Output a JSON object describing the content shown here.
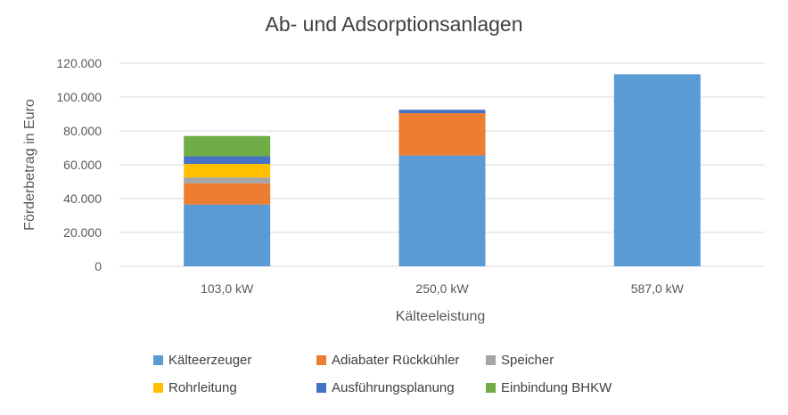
{
  "chart_data": {
    "type": "bar",
    "stacked": true,
    "title": "Ab- und Adsorptionsanlagen",
    "xlabel": "Kälteeleistung",
    "ylabel": "Förderbetrag in Euro",
    "ylim": [
      0,
      120000
    ],
    "yticks": [
      {
        "value": 0,
        "label": "0"
      },
      {
        "value": 20000,
        "label": "20.000"
      },
      {
        "value": 40000,
        "label": "40.000"
      },
      {
        "value": 60000,
        "label": "60.000"
      },
      {
        "value": 80000,
        "label": "80.000"
      },
      {
        "value": 100000,
        "label": "100.000"
      },
      {
        "value": 120000,
        "label": "120.000"
      }
    ],
    "grid": true,
    "legend_position": "bottom",
    "categories": [
      "103,0 kW",
      "250,0 kW",
      "587,0 kW"
    ],
    "series": [
      {
        "name": "Kälteerzeuger",
        "color": "#5B9BD5",
        "values": [
          36500,
          65500,
          113500
        ]
      },
      {
        "name": "Adiabater Rückkühler",
        "color": "#ED7D31",
        "values": [
          12500,
          25000,
          0
        ]
      },
      {
        "name": "Speicher",
        "color": "#A5A5A5",
        "values": [
          3500,
          0,
          0
        ]
      },
      {
        "name": "Rohrleitung",
        "color": "#FFC000",
        "values": [
          8000,
          0,
          0
        ]
      },
      {
        "name": "Ausführungsplanung",
        "color": "#4472C4",
        "values": [
          4500,
          2000,
          0
        ]
      },
      {
        "name": "Einbindung BHKW",
        "color": "#70AD47",
        "values": [
          12000,
          0,
          0
        ]
      }
    ]
  }
}
